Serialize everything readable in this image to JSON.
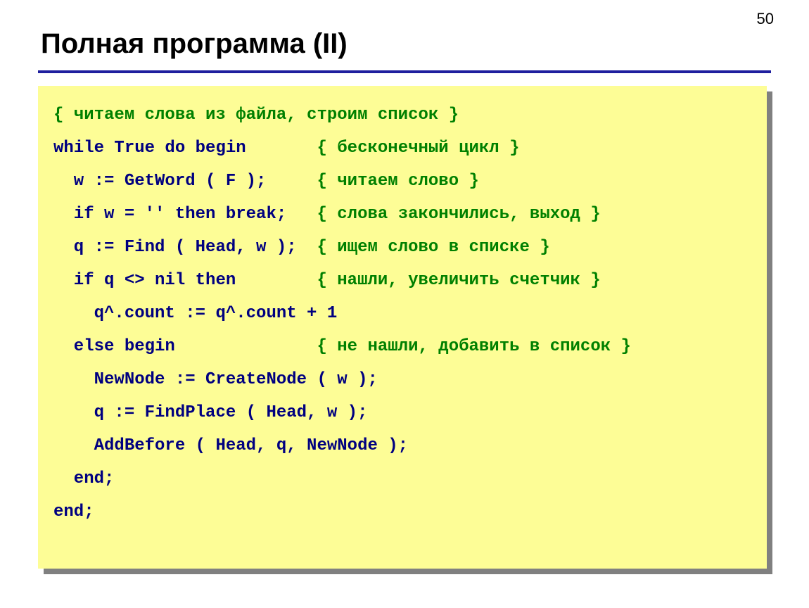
{
  "page_number": "50",
  "title": "Полная программа (II)",
  "colors": {
    "background": "#ffffff",
    "title_color": "#000000",
    "underline_color": "#1e1e9e",
    "code_box_bg": "#fdfd96",
    "code_box_shadow": "#808080",
    "code_color": "#000080",
    "comment_color": "#008000"
  },
  "typography": {
    "title_fontsize": 40,
    "title_fontweight": "bold",
    "code_fontsize": 24,
    "code_fontfamily": "Courier New",
    "code_fontweight": "bold",
    "code_lineheight": 47
  },
  "code": {
    "lines": [
      {
        "segments": [
          {
            "t": "comment",
            "s": "{ читаем слова из файла, строим список }"
          }
        ]
      },
      {
        "segments": [
          {
            "t": "code",
            "s": "while True do begin       "
          },
          {
            "t": "comment",
            "s": "{ бесконечный цикл }"
          }
        ]
      },
      {
        "segments": [
          {
            "t": "code",
            "s": "  w := GetWord ( F );     "
          },
          {
            "t": "comment",
            "s": "{ читаем слово }"
          }
        ]
      },
      {
        "segments": [
          {
            "t": "code",
            "s": "  if w = '' then break;   "
          },
          {
            "t": "comment",
            "s": "{ слова закончились, выход }"
          }
        ]
      },
      {
        "segments": [
          {
            "t": "code",
            "s": "  q := Find ( Head, w );  "
          },
          {
            "t": "comment",
            "s": "{ ищем слово в списке }"
          }
        ]
      },
      {
        "segments": [
          {
            "t": "code",
            "s": "  if q <> nil then        "
          },
          {
            "t": "comment",
            "s": "{ нашли, увеличить счетчик }"
          }
        ]
      },
      {
        "segments": [
          {
            "t": "code",
            "s": "    q^.count := q^.count + 1"
          }
        ]
      },
      {
        "segments": [
          {
            "t": "code",
            "s": "  else begin              "
          },
          {
            "t": "comment",
            "s": "{ не нашли, добавить в список }"
          }
        ]
      },
      {
        "segments": [
          {
            "t": "code",
            "s": "    NewNode := CreateNode ( w );"
          }
        ]
      },
      {
        "segments": [
          {
            "t": "code",
            "s": "    q := FindPlace ( Head, w );"
          }
        ]
      },
      {
        "segments": [
          {
            "t": "code",
            "s": "    AddBefore ( Head, q, NewNode );"
          }
        ]
      },
      {
        "segments": [
          {
            "t": "code",
            "s": "  end;"
          }
        ]
      },
      {
        "segments": [
          {
            "t": "code",
            "s": "end;"
          }
        ]
      }
    ]
  }
}
